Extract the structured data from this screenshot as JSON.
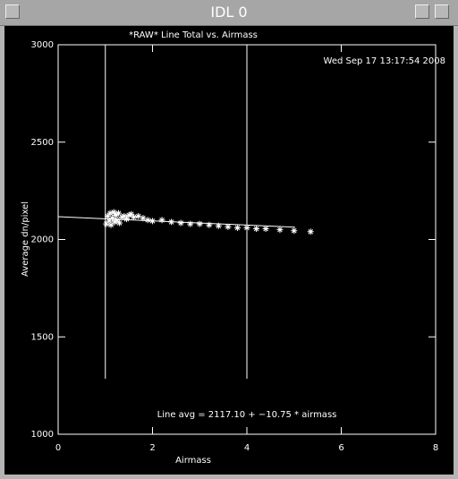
{
  "window_title": "IDL 0",
  "chart_data": {
    "type": "scatter",
    "title": "*RAW* Line Total vs. Airmass",
    "xlabel": "Airmass",
    "ylabel": "Average dn/pixel",
    "annotations": [
      "Wed Sep 17 13:17:54 2008",
      "Line avg = 2117.10 + −10.75 * airmass"
    ],
    "xlim": [
      0,
      8
    ],
    "ylim": [
      1000,
      3000
    ],
    "xticks": [
      0,
      2,
      4,
      6,
      8
    ],
    "yticks": [
      1000,
      1500,
      2000,
      2500,
      3000
    ],
    "series": [
      {
        "type": "scatter",
        "color": "#ffffff",
        "x": [
          1.02,
          1.05,
          1.08,
          1.1,
          1.12,
          1.15,
          1.18,
          1.2,
          1.22,
          1.25,
          1.28,
          1.3,
          1.35,
          1.4,
          1.45,
          1.5,
          1.55,
          1.6,
          1.7,
          1.8,
          1.9,
          2.0,
          2.2,
          2.4,
          2.6,
          2.8,
          3.0,
          3.2,
          3.4,
          3.6,
          3.8,
          4.0,
          4.2,
          4.4,
          4.7,
          5.0,
          5.35
        ],
        "values": [
          2080,
          2120,
          2095,
          2135,
          2075,
          2110,
          2140,
          2090,
          2125,
          2100,
          2135,
          2085,
          2115,
          2120,
          2105,
          2125,
          2130,
          2115,
          2120,
          2110,
          2100,
          2095,
          2100,
          2090,
          2085,
          2080,
          2080,
          2075,
          2070,
          2065,
          2060,
          2060,
          2055,
          2055,
          2050,
          2045,
          2040
        ]
      },
      {
        "type": "line",
        "color": "#ffffff",
        "x": [
          0,
          5.02
        ],
        "values": [
          2117.1,
          2063.1
        ]
      },
      {
        "type": "line",
        "color": "#ffffff",
        "x": [
          1,
          1
        ],
        "values": [
          1285,
          3000
        ]
      },
      {
        "type": "line",
        "color": "#ffffff",
        "x": [
          4,
          4
        ],
        "values": [
          1285,
          3000
        ]
      }
    ]
  }
}
